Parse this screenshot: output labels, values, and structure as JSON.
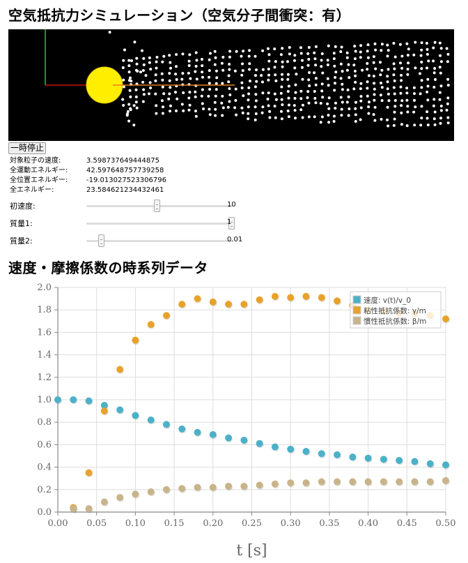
{
  "title": "空気抵抗力シミュレーション（空気分子間衝突：有）",
  "controls": {
    "pause_label": "一時停止"
  },
  "stats": [
    {
      "label": "対象粒子の速度:",
      "value": "3.598737649444875"
    },
    {
      "label": "全運動エネルギー:",
      "value": "42.597648757739258"
    },
    {
      "label": "全位置エネルギー:",
      "value": "-19.013027523306796"
    },
    {
      "label": "全エネルギー:",
      "value": "23.584621234432461"
    }
  ],
  "sliders": [
    {
      "label": "初速度:",
      "value": "10",
      "level": 0.48
    },
    {
      "label": "質量1:",
      "value": "1",
      "level": 0.99
    },
    {
      "label": "質量2:",
      "value": "0.01",
      "level": 0.1
    }
  ],
  "chart_section_title": "速度・摩擦係数の時系列データ",
  "colors": {
    "velocity": "#4cb1c8",
    "viscous": "#e8a22c",
    "inertial": "#c9b48a",
    "ball": "#ffee00"
  },
  "chart_data": {
    "type": "scatter",
    "title": "",
    "xlabel": "t [s]",
    "ylabel": "",
    "xlim": [
      0,
      0.5
    ],
    "ylim": [
      0,
      2.0
    ],
    "x_ticks": [
      "0.00",
      "0.05",
      "0.10",
      "0.15",
      "0.20",
      "0.25",
      "0.30",
      "0.35",
      "0.40",
      "0.45",
      "0.50"
    ],
    "y_ticks": [
      "0.0",
      "0.2",
      "0.4",
      "0.6",
      "0.8",
      "1.0",
      "1.2",
      "1.4",
      "1.6",
      "1.8",
      "2.0"
    ],
    "grid": true,
    "legend_position": "top-right",
    "series": [
      {
        "name": "速度: v(t)/v_0",
        "x": [
          0,
          0.02,
          0.04,
          0.06,
          0.08,
          0.1,
          0.12,
          0.14,
          0.16,
          0.18,
          0.2,
          0.22,
          0.24,
          0.26,
          0.28,
          0.3,
          0.32,
          0.34,
          0.36,
          0.38,
          0.4,
          0.42,
          0.44,
          0.46,
          0.48,
          0.5
        ],
        "y": [
          1.0,
          1.0,
          0.99,
          0.95,
          0.91,
          0.86,
          0.82,
          0.78,
          0.74,
          0.71,
          0.69,
          0.66,
          0.64,
          0.61,
          0.58,
          0.56,
          0.54,
          0.52,
          0.51,
          0.49,
          0.48,
          0.47,
          0.46,
          0.45,
          0.43,
          0.42
        ]
      },
      {
        "name": "粘性抵抗係数: γ/m",
        "x": [
          0.02,
          0.04,
          0.06,
          0.08,
          0.1,
          0.12,
          0.14,
          0.16,
          0.18,
          0.2,
          0.22,
          0.24,
          0.26,
          0.28,
          0.3,
          0.32,
          0.34,
          0.36,
          0.38,
          0.4,
          0.42,
          0.44,
          0.46,
          0.48,
          0.5
        ],
        "y": [
          0.04,
          0.35,
          0.9,
          1.27,
          1.53,
          1.67,
          1.75,
          1.85,
          1.9,
          1.87,
          1.85,
          1.85,
          1.89,
          1.92,
          1.91,
          1.92,
          1.91,
          1.88,
          1.84,
          1.8,
          1.79,
          1.77,
          1.77,
          1.75,
          1.72
        ]
      },
      {
        "name": "慣性抵抗係数: β/m",
        "x": [
          0.02,
          0.04,
          0.06,
          0.08,
          0.1,
          0.12,
          0.14,
          0.16,
          0.18,
          0.2,
          0.22,
          0.24,
          0.26,
          0.28,
          0.3,
          0.32,
          0.34,
          0.36,
          0.38,
          0.4,
          0.42,
          0.44,
          0.46,
          0.48,
          0.5
        ],
        "y": [
          0.03,
          0.03,
          0.09,
          0.13,
          0.16,
          0.18,
          0.2,
          0.21,
          0.22,
          0.22,
          0.23,
          0.23,
          0.24,
          0.25,
          0.26,
          0.26,
          0.27,
          0.27,
          0.27,
          0.27,
          0.27,
          0.27,
          0.27,
          0.27,
          0.28
        ]
      }
    ]
  }
}
